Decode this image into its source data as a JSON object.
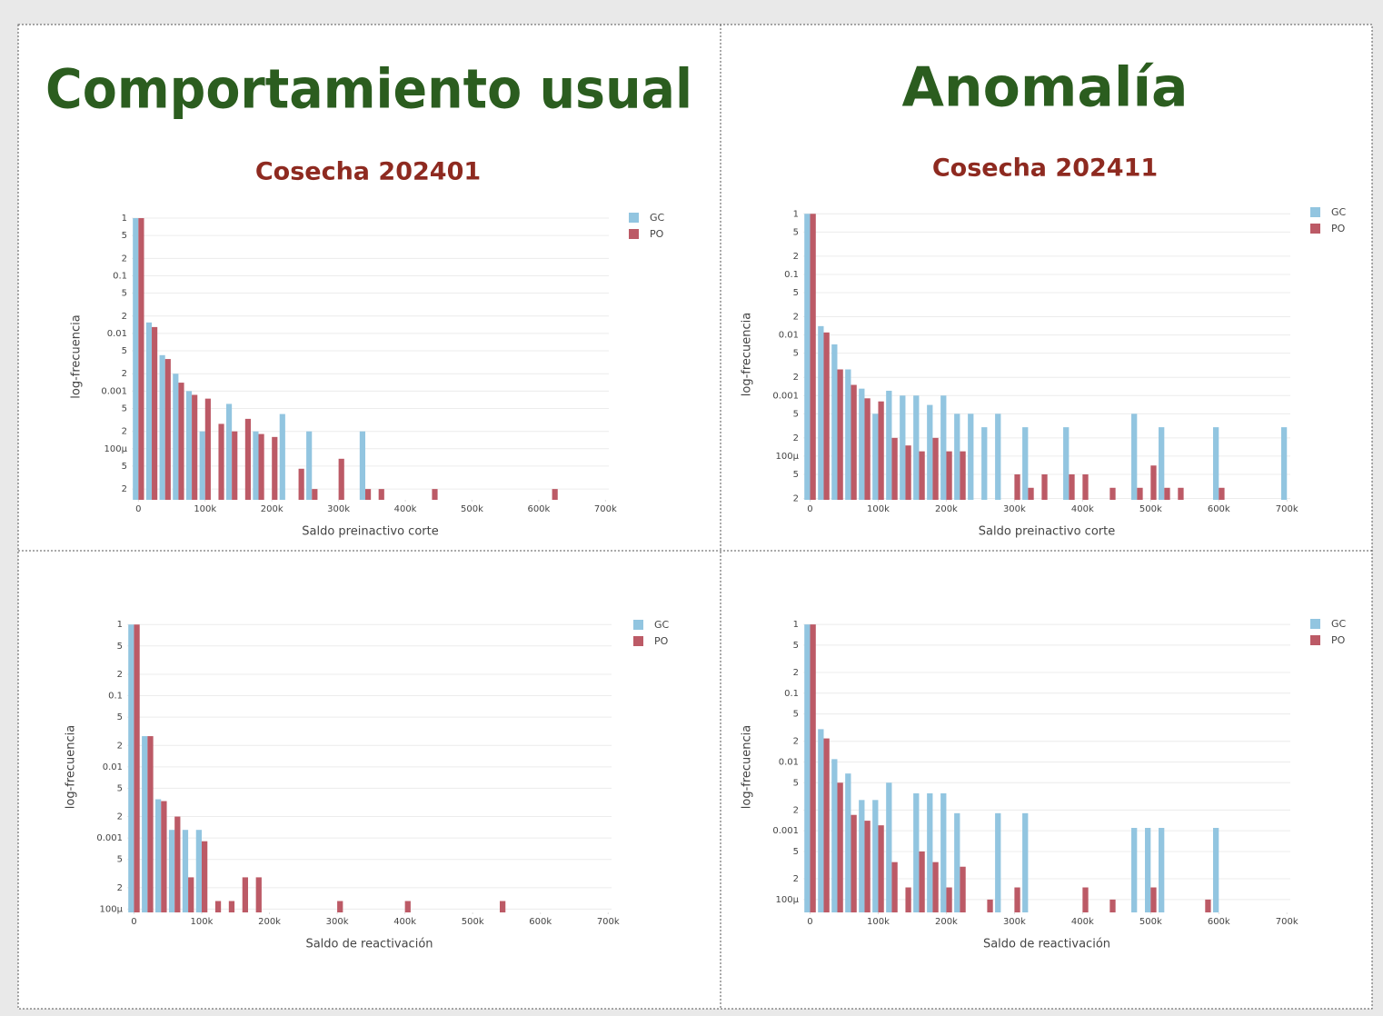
{
  "headers": [
    "Comportamiento usual",
    "Anomalía"
  ],
  "chart_data": [
    {
      "type": "histogram",
      "title": "Cosecha 202401",
      "xlabel": "Saldo preinactivo corte",
      "ylabel": "log-frecuencia",
      "log_y": true,
      "grid": true,
      "legend": "top-right",
      "bins": [
        -10000,
        10000,
        30000,
        50000,
        70000,
        90000,
        110000,
        130000,
        150000,
        170000,
        190000,
        210000,
        230000,
        250000,
        270000,
        290000,
        310000,
        330000,
        350000,
        370000,
        390000,
        410000,
        430000,
        450000,
        470000,
        490000,
        510000,
        530000,
        550000,
        570000,
        590000,
        610000,
        630000,
        650000,
        670000,
        690000,
        710000
      ],
      "xlim": [
        -10000,
        705000
      ],
      "xticks": [
        0,
        {
          "value": 100000,
          "label": "100k"
        },
        {
          "value": 200000,
          "label": "200k"
        },
        {
          "value": 300000,
          "label": "300k"
        },
        {
          "value": 400000,
          "label": "400k"
        },
        {
          "value": 500000,
          "label": "500k"
        },
        {
          "value": 600000,
          "label": "600k"
        },
        {
          "value": 700000,
          "label": "700k"
        }
      ],
      "ylim": [
        1.3e-05,
        1.2
      ],
      "yticks": [
        1,
        {
          "value": 0.5,
          "label": "5"
        },
        {
          "value": 0.2,
          "label": "2"
        },
        0.1,
        {
          "value": 0.05,
          "label": "5"
        },
        {
          "value": 0.02,
          "label": "2"
        },
        0.01,
        {
          "value": 0.005,
          "label": "5"
        },
        {
          "value": 0.002,
          "label": "2"
        },
        0.001,
        {
          "value": 0.0005,
          "label": "5"
        },
        {
          "value": 0.0002,
          "label": "2"
        },
        {
          "value": 0.0001,
          "label": "100µ"
        },
        {
          "value": 5e-05,
          "label": "5"
        },
        {
          "value": 2e-05,
          "label": "2"
        }
      ],
      "series": [
        {
          "name": "GC",
          "color": "#92c5e0",
          "values": [
            1,
            0.0155,
            0.0042,
            0.002,
            0.001,
            0.0002,
            0,
            0.0006,
            0,
            0.0002,
            0,
            0.0004,
            0,
            0.0002,
            0,
            0,
            0,
            0.0002,
            0,
            0,
            0,
            0,
            0,
            0,
            0,
            0,
            0,
            0,
            0,
            0,
            0,
            0,
            0,
            0,
            0,
            0
          ]
        },
        {
          "name": "PO",
          "color": "#bc5a66",
          "values": [
            1,
            0.0129,
            0.0036,
            0.0014,
            0.00086,
            0.00074,
            0.00027,
            0.0002,
            0.00033,
            0.00018,
            0.00016,
            0,
            4.5e-05,
            2e-05,
            0,
            6.7e-05,
            0,
            2e-05,
            2e-05,
            0,
            0,
            0,
            2e-05,
            0,
            0,
            0,
            0,
            0,
            0,
            0,
            0,
            2e-05,
            0,
            0,
            0,
            0
          ]
        }
      ]
    },
    {
      "type": "histogram",
      "title": "Cosecha 202411",
      "xlabel": "Saldo preinactivo corte",
      "ylabel": "log-frecuencia",
      "log_y": true,
      "grid": true,
      "legend": "top-right",
      "bins": [
        -10000,
        10000,
        30000,
        50000,
        70000,
        90000,
        110000,
        130000,
        150000,
        170000,
        190000,
        210000,
        230000,
        250000,
        270000,
        290000,
        310000,
        330000,
        350000,
        370000,
        390000,
        410000,
        430000,
        450000,
        470000,
        490000,
        510000,
        530000,
        550000,
        570000,
        590000,
        610000,
        630000,
        650000,
        670000,
        690000,
        710000
      ],
      "xlim": [
        -10000,
        705000
      ],
      "xticks": [
        0,
        {
          "value": 100000,
          "label": "100k"
        },
        {
          "value": 200000,
          "label": "200k"
        },
        {
          "value": 300000,
          "label": "300k"
        },
        {
          "value": 400000,
          "label": "400k"
        },
        {
          "value": 500000,
          "label": "500k"
        },
        {
          "value": 600000,
          "label": "600k"
        },
        {
          "value": 700000,
          "label": "700k"
        }
      ],
      "ylim": [
        1.9e-05,
        1.2
      ],
      "yticks": [
        1,
        {
          "value": 0.5,
          "label": "5"
        },
        {
          "value": 0.2,
          "label": "2"
        },
        0.1,
        {
          "value": 0.05,
          "label": "5"
        },
        {
          "value": 0.02,
          "label": "2"
        },
        0.01,
        {
          "value": 0.005,
          "label": "5"
        },
        {
          "value": 0.002,
          "label": "2"
        },
        0.001,
        {
          "value": 0.0005,
          "label": "5"
        },
        {
          "value": 0.0002,
          "label": "2"
        },
        {
          "value": 0.0001,
          "label": "100µ"
        },
        {
          "value": 5e-05,
          "label": "5"
        },
        {
          "value": 2e-05,
          "label": "2"
        }
      ],
      "series": [
        {
          "name": "GC",
          "color": "#92c5e0",
          "values": [
            1,
            0.014,
            0.007,
            0.0027,
            0.0013,
            0.0005,
            0.0012,
            0.001,
            0.001,
            0.0007,
            0.001,
            0.0005,
            0.0005,
            0.0003,
            0.0005,
            0,
            0.0003,
            0,
            0,
            0.0003,
            0,
            0,
            0,
            0,
            0.0005,
            0,
            0.0003,
            0,
            0,
            0,
            0.0003,
            0,
            0,
            0,
            0,
            0.0003
          ]
        },
        {
          "name": "PO",
          "color": "#bc5a66",
          "values": [
            1,
            0.011,
            0.0027,
            0.0015,
            0.0009,
            0.0008,
            0.0002,
            0.00015,
            0.00012,
            0.0002,
            0.00012,
            0.00012,
            0,
            0,
            0,
            5e-05,
            3e-05,
            5e-05,
            0,
            5e-05,
            5e-05,
            0,
            3e-05,
            0,
            3e-05,
            7e-05,
            3e-05,
            3e-05,
            0,
            0,
            3e-05,
            0,
            0,
            0,
            0,
            0
          ]
        }
      ]
    },
    {
      "type": "histogram",
      "xlabel": "Saldo de reactivación",
      "ylabel": "log-frecuencia",
      "log_y": true,
      "grid": true,
      "legend": "top-right",
      "bins": [
        -10000,
        10000,
        30000,
        50000,
        70000,
        90000,
        110000,
        130000,
        150000,
        170000,
        190000,
        210000,
        230000,
        250000,
        270000,
        290000,
        310000,
        330000,
        350000,
        370000,
        390000,
        410000,
        430000,
        450000,
        470000,
        490000,
        510000,
        530000,
        550000,
        570000,
        590000,
        610000,
        630000,
        650000,
        670000,
        690000,
        710000
      ],
      "xlim": [
        -10000,
        705000
      ],
      "xticks": [
        0,
        {
          "value": 100000,
          "label": "100k"
        },
        {
          "value": 200000,
          "label": "200k"
        },
        {
          "value": 300000,
          "label": "300k"
        },
        {
          "value": 400000,
          "label": "400k"
        },
        {
          "value": 500000,
          "label": "500k"
        },
        {
          "value": 600000,
          "label": "600k"
        },
        {
          "value": 700000,
          "label": "700k"
        }
      ],
      "ylim": [
        9e-05,
        1.1
      ],
      "yticks": [
        1,
        {
          "value": 0.5,
          "label": "5"
        },
        {
          "value": 0.2,
          "label": "2"
        },
        0.1,
        {
          "value": 0.05,
          "label": "5"
        },
        {
          "value": 0.02,
          "label": "2"
        },
        0.01,
        {
          "value": 0.005,
          "label": "5"
        },
        {
          "value": 0.002,
          "label": "2"
        },
        0.001,
        {
          "value": 0.0005,
          "label": "5"
        },
        {
          "value": 0.0002,
          "label": "2"
        },
        {
          "value": 0.0001,
          "label": "100µ"
        }
      ],
      "series": [
        {
          "name": "GC",
          "color": "#92c5e0",
          "values": [
            1,
            0.027,
            0.0035,
            0.0013,
            0.0013,
            0.0013,
            0,
            0,
            0,
            0,
            0,
            0,
            0,
            0,
            0,
            0,
            0,
            0,
            0,
            0,
            0,
            0,
            0,
            0,
            0,
            0,
            0,
            0,
            0,
            0,
            0,
            0,
            0,
            0,
            0,
            0
          ]
        },
        {
          "name": "PO",
          "color": "#bc5a66",
          "values": [
            1,
            0.027,
            0.0033,
            0.002,
            0.00028,
            0.0009,
            0.00013,
            0.00013,
            0.00028,
            0.00028,
            0,
            0,
            0,
            0,
            0,
            0.00013,
            0,
            0,
            0,
            0,
            0.00013,
            0,
            0,
            0,
            0,
            0,
            0,
            0.00013,
            0,
            0,
            0,
            0,
            0,
            0,
            0,
            0
          ]
        }
      ]
    },
    {
      "type": "histogram",
      "xlabel": "Saldo de reactivación",
      "ylabel": "log-frecuencia",
      "log_y": true,
      "grid": true,
      "legend": "top-right",
      "bins": [
        -10000,
        10000,
        30000,
        50000,
        70000,
        90000,
        110000,
        130000,
        150000,
        170000,
        190000,
        210000,
        230000,
        250000,
        270000,
        290000,
        310000,
        330000,
        350000,
        370000,
        390000,
        410000,
        430000,
        450000,
        470000,
        490000,
        510000,
        530000,
        550000,
        570000,
        590000,
        610000,
        630000,
        650000,
        670000,
        690000,
        710000
      ],
      "xlim": [
        -10000,
        705000
      ],
      "xticks": [
        0,
        {
          "value": 100000,
          "label": "100k"
        },
        {
          "value": 200000,
          "label": "200k"
        },
        {
          "value": 300000,
          "label": "300k"
        },
        {
          "value": 400000,
          "label": "400k"
        },
        {
          "value": 500000,
          "label": "500k"
        },
        {
          "value": 600000,
          "label": "600k"
        },
        {
          "value": 700000,
          "label": "700k"
        }
      ],
      "ylim": [
        6.5e-05,
        1.1
      ],
      "yticks": [
        1,
        {
          "value": 0.5,
          "label": "5"
        },
        {
          "value": 0.2,
          "label": "2"
        },
        0.1,
        {
          "value": 0.05,
          "label": "5"
        },
        {
          "value": 0.02,
          "label": "2"
        },
        0.01,
        {
          "value": 0.005,
          "label": "5"
        },
        {
          "value": 0.002,
          "label": "2"
        },
        0.001,
        {
          "value": 0.0005,
          "label": "5"
        },
        {
          "value": 0.0002,
          "label": "2"
        },
        {
          "value": 0.0001,
          "label": "100µ"
        }
      ],
      "series": [
        {
          "name": "GC",
          "color": "#92c5e0",
          "values": [
            1,
            0.03,
            0.011,
            0.0068,
            0.0028,
            0.0028,
            0.005,
            0,
            0.0035,
            0.0035,
            0.0035,
            0.0018,
            0,
            0,
            0.0018,
            0,
            0.0018,
            0,
            0,
            0,
            0,
            0,
            0,
            0,
            0.0011,
            0.0011,
            0.0011,
            0,
            0,
            0,
            0.0011,
            0,
            0,
            0,
            0,
            0
          ]
        },
        {
          "name": "PO",
          "color": "#bc5a66",
          "values": [
            1,
            0.022,
            0.005,
            0.0017,
            0.0014,
            0.0012,
            0.00035,
            0.00015,
            0.0005,
            0.00035,
            0.00015,
            0.0003,
            0,
            0.0001,
            0,
            0.00015,
            0,
            0,
            0,
            0,
            0.00015,
            0,
            0.0001,
            0,
            0,
            0.00015,
            0,
            0,
            0,
            0.0001,
            0,
            0,
            0,
            0,
            0,
            0
          ]
        }
      ]
    }
  ]
}
